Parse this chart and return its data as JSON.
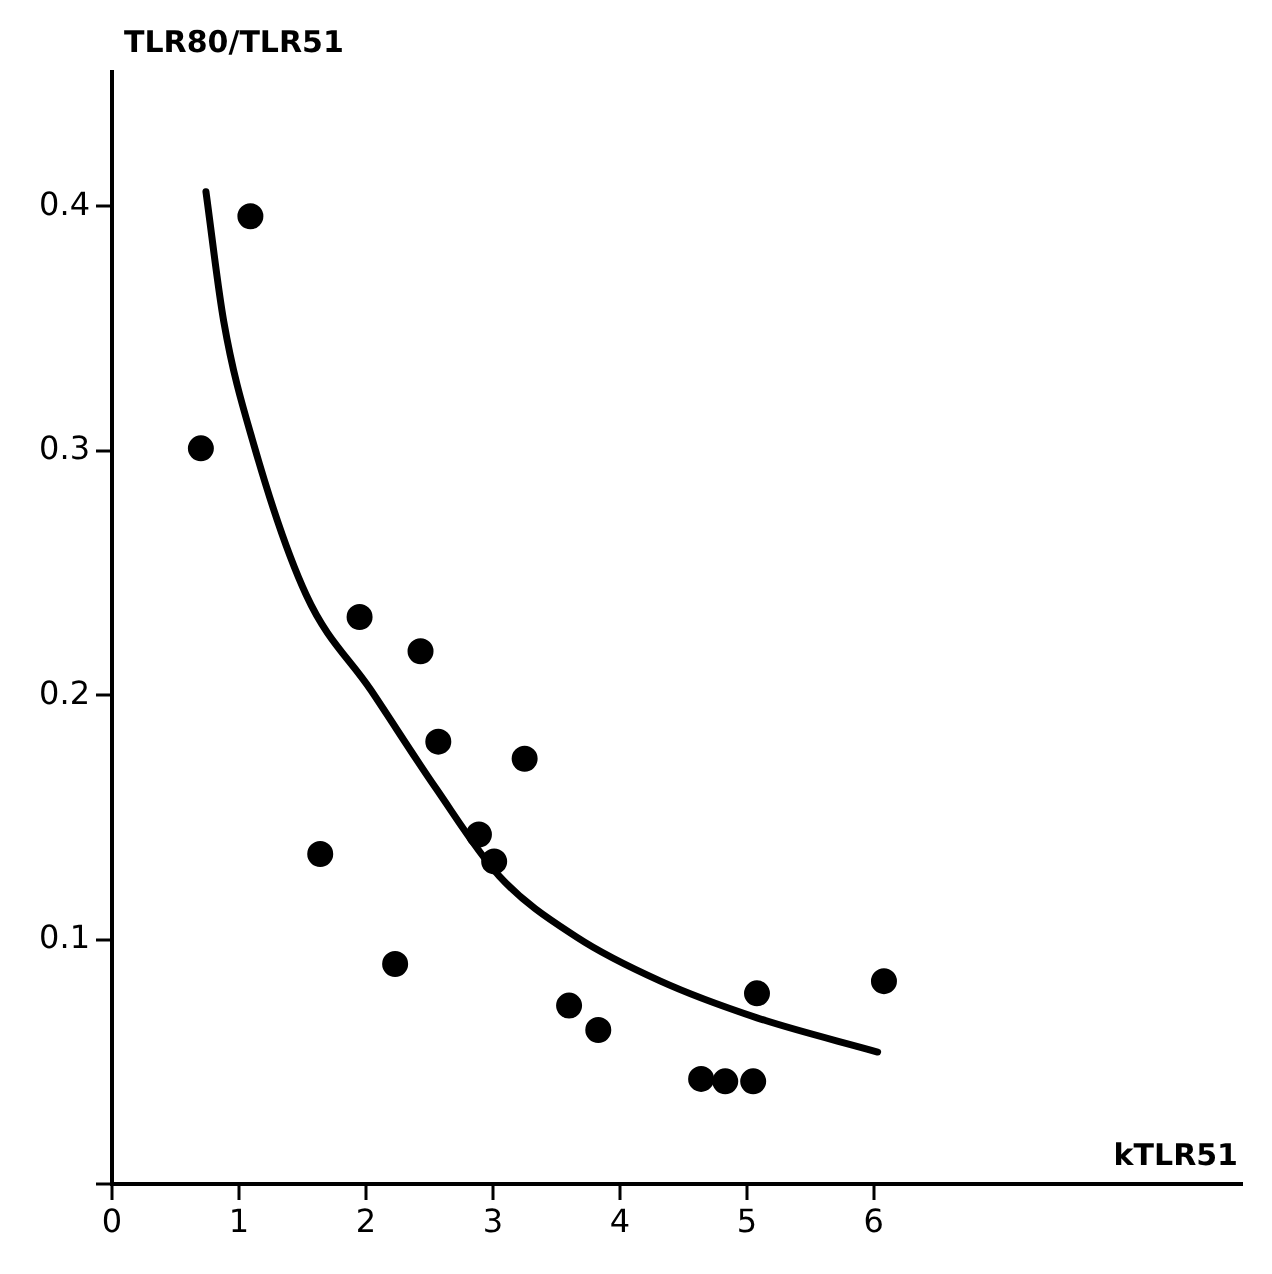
{
  "chart_data": {
    "type": "scatter",
    "xlabel": "kTLR51",
    "ylabel": "TLR80/TLR51",
    "xlim": [
      0,
      8.9
    ],
    "ylim": [
      0,
      0.455
    ],
    "xticks": [
      0,
      1,
      2,
      3,
      4,
      5,
      6
    ],
    "yticks": [
      {
        "value": 0,
        "label": null
      },
      0.1,
      0.2,
      0.3,
      0.4
    ],
    "grid": false,
    "marker": "circle",
    "series": [
      {
        "color": "#000000",
        "x": [
          0.7,
          1.09,
          1.95,
          2.43,
          2.57,
          3.25,
          2.89,
          3.01,
          1.64,
          2.23,
          3.6,
          3.83,
          4.64,
          4.83,
          5.05,
          5.08,
          6.08
        ],
        "values": [
          0.301,
          0.396,
          0.232,
          0.218,
          0.181,
          0.174,
          0.143,
          0.132,
          0.135,
          0.09,
          0.073,
          0.063,
          0.043,
          0.042,
          0.042,
          0.078,
          0.083
        ]
      },
      {
        "type": "line",
        "color": "#000000",
        "marker": "none",
        "x": [
          0.74,
          0.88,
          1.12,
          1.53,
          2.04,
          2.55,
          3.05,
          3.66,
          4.32,
          5.08,
          6.03
        ],
        "values": [
          0.406,
          0.353,
          0.302,
          0.241,
          0.202,
          0.162,
          0.126,
          0.101,
          0.083,
          0.068,
          0.054
        ]
      }
    ]
  }
}
